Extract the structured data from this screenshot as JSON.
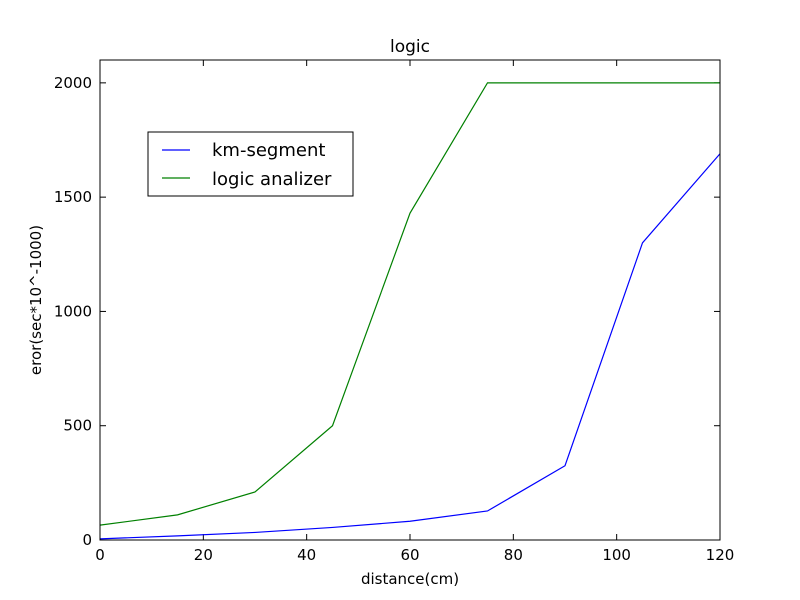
{
  "chart_data": {
    "type": "line",
    "title": "logic",
    "xlabel": "distance(cm)",
    "ylabel": "eror(sec*10^-1000)",
    "xlim": [
      0,
      120
    ],
    "ylim": [
      0,
      2100
    ],
    "xticks": [
      0,
      20,
      40,
      60,
      80,
      100,
      120
    ],
    "yticks": [
      0,
      500,
      1000,
      1500,
      2000
    ],
    "grid": false,
    "legend_position": "upper-left",
    "series": [
      {
        "name": "km-segment",
        "color": "#0000ff",
        "x": [
          0,
          15,
          30,
          45,
          60,
          75,
          90,
          105,
          120
        ],
        "y": [
          5,
          18,
          33,
          55,
          82,
          127,
          325,
          1300,
          1690
        ]
      },
      {
        "name": "logic analizer",
        "color": "#008000",
        "x": [
          0,
          15,
          30,
          45,
          60,
          75,
          90,
          105,
          120
        ],
        "y": [
          65,
          110,
          210,
          500,
          1430,
          2000,
          2000,
          2000,
          2000
        ]
      }
    ]
  }
}
